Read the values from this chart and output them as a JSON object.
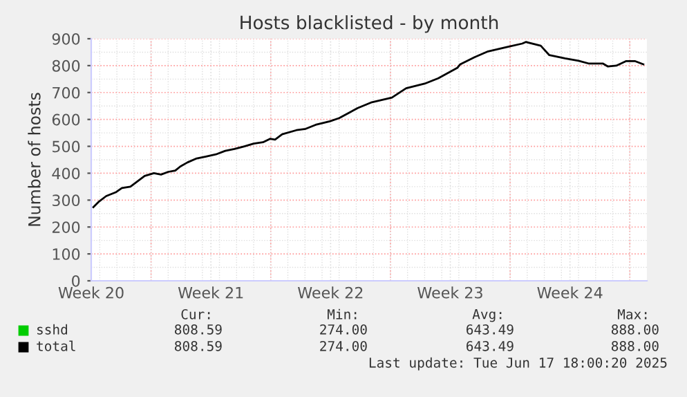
{
  "chart_data": {
    "type": "line",
    "title": "Hosts blacklisted - by month",
    "ylabel": "Number of hosts",
    "x": [
      "2025-05-15T15:00",
      "2025-05-15T23:00",
      "2025-05-16T09:00",
      "2025-05-16T23:00",
      "2025-05-17T07:00",
      "2025-05-17T19:00",
      "2025-05-18T05:00",
      "2025-05-18T15:00",
      "2025-05-19T04:00",
      "2025-05-19T14:00",
      "2025-05-20T00:00",
      "2025-05-20T10:00",
      "2025-05-20T17:00",
      "2025-05-21T03:00",
      "2025-05-21T16:00",
      "2025-05-22T05:00",
      "2025-05-22T19:00",
      "2025-05-23T08:00",
      "2025-05-23T21:00",
      "2025-05-24T11:00",
      "2025-05-25T00:00",
      "2025-05-25T13:00",
      "2025-05-25T23:00",
      "2025-05-26T06:00",
      "2025-05-26T16:00",
      "2025-05-27T12:00",
      "2025-05-28T01:00",
      "2025-05-28T15:00",
      "2025-05-29T11:00",
      "2025-05-30T00:00",
      "2025-05-31T02:00",
      "2025-05-31T22:00",
      "2025-06-02T02:00",
      "2025-06-02T22:00",
      "2025-06-04T00:00",
      "2025-06-04T19:00",
      "2025-06-05T22:00",
      "2025-06-06T02:00",
      "2025-06-06T22:00",
      "2025-06-07T17:00",
      "2025-06-08T19:00",
      "2025-06-09T17:00",
      "2025-06-09T22:00",
      "2025-06-10T19:00",
      "2025-06-11T07:00",
      "2025-06-12T05:00",
      "2025-06-13T00:00",
      "2025-06-13T14:00",
      "2025-06-14T10:00",
      "2025-06-14T17:00",
      "2025-06-15T05:00",
      "2025-06-15T19:00",
      "2025-06-16T07:00",
      "2025-06-16T19:00"
    ],
    "series": [
      {
        "name": "sshd",
        "color": "#00cc00",
        "values": [
          null,
          null,
          null,
          null,
          null,
          null,
          null,
          null,
          null,
          null,
          null,
          null,
          null,
          null,
          null,
          null,
          null,
          null,
          null,
          null,
          null,
          null,
          null,
          null,
          null,
          null,
          null,
          null,
          null,
          null,
          null,
          null,
          null,
          null,
          null,
          null,
          null,
          null,
          null,
          null,
          null,
          null,
          null,
          null,
          null,
          null,
          null,
          null,
          null,
          null,
          null,
          null,
          null,
          null
        ]
      },
      {
        "name": "total",
        "color": "#000000",
        "values": [
          274,
          295,
          315,
          330,
          345,
          350,
          370,
          390,
          400,
          395,
          405,
          410,
          425,
          440,
          455,
          462,
          470,
          483,
          490,
          500,
          510,
          515,
          528,
          525,
          545,
          560,
          565,
          580,
          593,
          605,
          642,
          664,
          681,
          716,
          733,
          753,
          792,
          805,
          831,
          853,
          869,
          882,
          888,
          874,
          839,
          827,
          818,
          808,
          808,
          797,
          800,
          817,
          817,
          805
        ]
      }
    ],
    "xlim": [
      "2025-05-15T12:00",
      "2025-06-17T00:00"
    ],
    "xticks": [
      {
        "value": "2025-05-15T12:00",
        "label": "Week 20"
      },
      {
        "value": "2025-05-19",
        "label": null
      },
      {
        "value": "2025-05-22T12:00",
        "label": "Week 21"
      },
      {
        "value": "2025-05-26",
        "label": null
      },
      {
        "value": "2025-05-29T12:00",
        "label": "Week 22"
      },
      {
        "value": "2025-06-02",
        "label": null
      },
      {
        "value": "2025-06-05T12:00",
        "label": "Week 23"
      },
      {
        "value": "2025-06-09",
        "label": null
      },
      {
        "value": "2025-06-12T12:00",
        "label": "Week 24"
      },
      {
        "value": "2025-06-16",
        "label": null
      }
    ],
    "ylim": [
      0,
      900
    ],
    "yticks": [
      0,
      100,
      200,
      300,
      400,
      500,
      600,
      700,
      800,
      900
    ],
    "grid": true,
    "legend": "bottom",
    "marker": "none",
    "line_style": "solid",
    "annotations": [
      "Cur:",
      "Min:",
      "Avg:",
      "Max:",
      "808.59",
      "274.00",
      "643.49",
      "888.00",
      "808.59",
      "274.00",
      "643.49",
      "888.00",
      "Last update: Tue Jun 17 18:00:20 2025"
    ]
  }
}
